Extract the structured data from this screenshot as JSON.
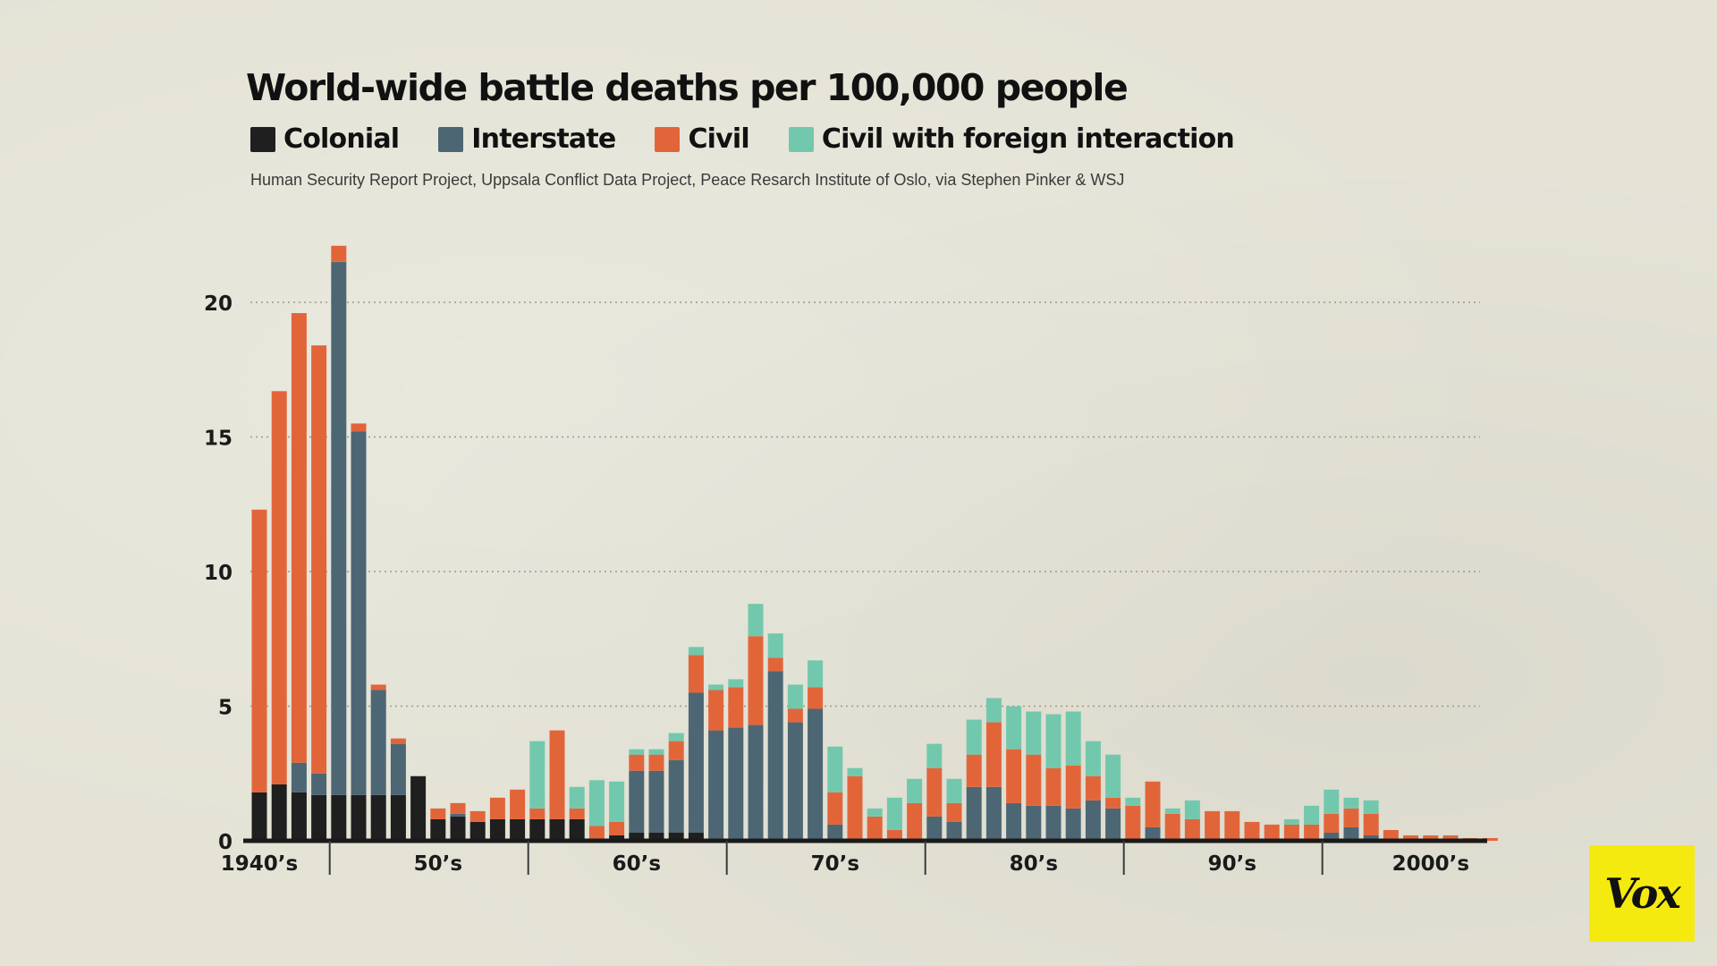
{
  "chart_data": {
    "type": "bar",
    "stacked": true,
    "title": "World-wide battle deaths per 100,000 people",
    "source": "Human Security Report Project, Uppsala Conflict Data Project, Peace Resarch Institute of Oslo, via Stephen Pinker & WSJ",
    "years": [
      1946,
      1947,
      1948,
      1949,
      1950,
      1951,
      1952,
      1953,
      1954,
      1955,
      1956,
      1957,
      1958,
      1959,
      1960,
      1961,
      1962,
      1963,
      1964,
      1965,
      1966,
      1967,
      1968,
      1969,
      1970,
      1971,
      1972,
      1973,
      1974,
      1975,
      1976,
      1977,
      1978,
      1979,
      1980,
      1981,
      1982,
      1983,
      1984,
      1985,
      1986,
      1987,
      1988,
      1989,
      1990,
      1991,
      1992,
      1993,
      1994,
      1995,
      1996,
      1997,
      1998,
      1999,
      2000,
      2001,
      2002,
      2003,
      2004,
      2005,
      2006,
      2007,
      2008
    ],
    "series": [
      {
        "name": "Colonial",
        "color": "#1f1f1f",
        "values": [
          1.8,
          2.1,
          1.8,
          1.7,
          1.7,
          1.7,
          1.7,
          1.7,
          2.4,
          0.8,
          0.9,
          0.7,
          0.8,
          0.8,
          0.8,
          0.8,
          0.8,
          0.05,
          0.2,
          0.3,
          0.3,
          0.3,
          0.3,
          0,
          0,
          0,
          0,
          0,
          0,
          0,
          0,
          0,
          0,
          0,
          0,
          0,
          0,
          0,
          0,
          0,
          0,
          0,
          0,
          0,
          0,
          0,
          0,
          0,
          0,
          0,
          0,
          0,
          0,
          0,
          0,
          0,
          0,
          0,
          0,
          0,
          0,
          0,
          0
        ]
      },
      {
        "name": "Interstate",
        "color": "#4d6673",
        "values": [
          0,
          0,
          1.1,
          0.8,
          19.8,
          13.5,
          3.9,
          1.9,
          0,
          0,
          0.1,
          0,
          0,
          0,
          0,
          0,
          0,
          0,
          0,
          2.3,
          2.3,
          2.7,
          5.2,
          4.1,
          4.2,
          4.3,
          6.3,
          4.4,
          4.9,
          0.6,
          0,
          0,
          0,
          0,
          0.9,
          0.7,
          2.0,
          2.0,
          1.4,
          1.3,
          1.3,
          1.2,
          1.5,
          1.2,
          0,
          0.5,
          0,
          0,
          0,
          0,
          0,
          0,
          0,
          0,
          0.3,
          0.5,
          0.2,
          0,
          0,
          0,
          0,
          0,
          0
        ]
      },
      {
        "name": "Civil",
        "color": "#e2653a",
        "values": [
          10.5,
          14.6,
          16.7,
          15.9,
          0.6,
          0.3,
          0.2,
          0.2,
          0,
          0.4,
          0.4,
          0.4,
          0.8,
          1.1,
          0.4,
          3.3,
          0.4,
          0.5,
          0.5,
          0.6,
          0.6,
          0.7,
          1.4,
          1.5,
          1.5,
          3.3,
          0.5,
          0.5,
          0.8,
          1.2,
          2.4,
          0.9,
          0.4,
          1.4,
          1.8,
          0.7,
          1.2,
          2.4,
          2.0,
          1.9,
          1.4,
          1.6,
          0.9,
          0.4,
          1.3,
          1.7,
          1.0,
          0.8,
          1.1,
          1.1,
          0.7,
          0.6,
          0.6,
          0.6,
          0.7,
          0.7,
          0.8,
          0.4,
          0.2,
          0.2,
          0.2,
          0.1,
          0.1
        ]
      },
      {
        "name": "Civil with foreign interaction",
        "color": "#72c8ad",
        "values": [
          0,
          0,
          0,
          0,
          0,
          0,
          0,
          0,
          0,
          0,
          0,
          0,
          0,
          0,
          2.5,
          0,
          0.8,
          1.7,
          1.5,
          0.2,
          0.2,
          0.3,
          0.3,
          0.2,
          0.3,
          1.2,
          0.9,
          0.9,
          1.0,
          1.7,
          0.3,
          0.3,
          1.2,
          0.9,
          0.9,
          0.9,
          1.3,
          0.9,
          1.6,
          1.6,
          2.0,
          2.0,
          1.3,
          1.6,
          0.3,
          0,
          0.2,
          0.7,
          0,
          0,
          0,
          0,
          0.2,
          0.7,
          0.9,
          0.4,
          0.5,
          0,
          0,
          0,
          0,
          0,
          0
        ]
      }
    ],
    "x_tick_labels": [
      "1940’s",
      "50’s",
      "60’s",
      "70’s",
      "80’s",
      "90’s",
      "2000’s"
    ],
    "x_tick_years": [
      1946,
      1955,
      1965,
      1975,
      1985,
      1995,
      2005
    ],
    "x_decade_dividers": [
      1950,
      1960,
      1970,
      1980,
      1990,
      2000
    ],
    "y_ticks": [
      0,
      5,
      10,
      15,
      20
    ],
    "ylim": [
      0,
      22
    ],
    "grid": "horizontal dotted",
    "legend_position": "top-left"
  },
  "logo": {
    "text": "Vox",
    "color": "#f5ea10"
  }
}
